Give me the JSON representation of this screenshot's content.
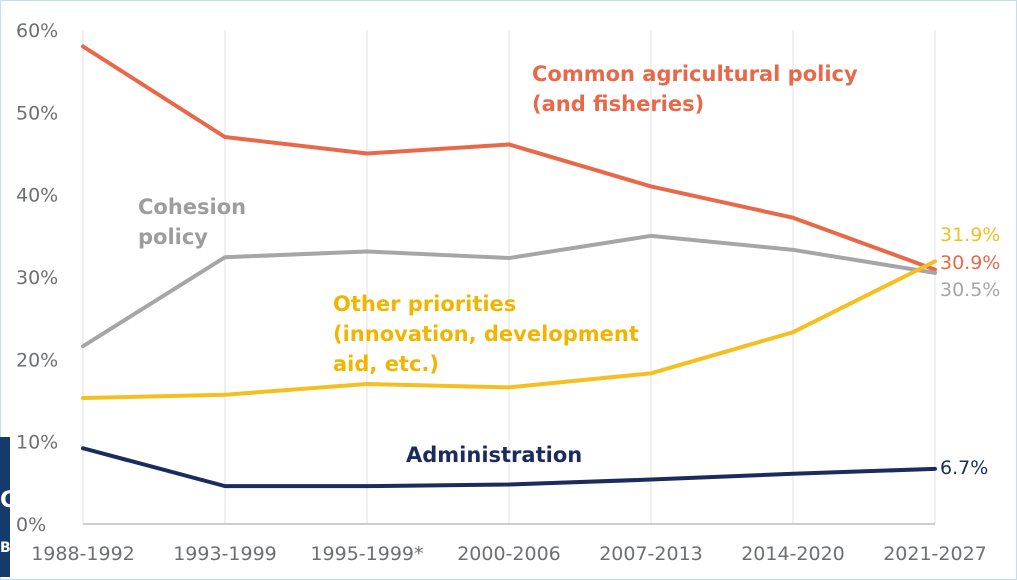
{
  "chart_data": {
    "type": "line",
    "title": "",
    "xlabel": "",
    "ylabel": "",
    "ylim": [
      0,
      60
    ],
    "y_ticks": [
      "0%",
      "10%",
      "20%",
      "30%",
      "40%",
      "50%",
      "60%"
    ],
    "grid": "vertical",
    "categories": [
      "1988-1992",
      "1993-1999",
      "1995-1999*",
      "2000-2006",
      "2007-2013",
      "2014-2020",
      "2021-2027"
    ],
    "series": [
      {
        "name": "Common agricultural policy (and fisheries)",
        "label_lines": [
          "Common agricultural policy",
          "(and fisheries)"
        ],
        "color": "#e8684a",
        "values": [
          58.0,
          47.0,
          45.0,
          46.1,
          41.0,
          37.2,
          30.9
        ],
        "end_label": "30.9%"
      },
      {
        "name": "Cohesion policy",
        "label_lines": [
          "Cohesion",
          "policy"
        ],
        "color": "#a6a6a6",
        "values": [
          21.6,
          32.4,
          33.1,
          32.3,
          35.0,
          33.3,
          30.5
        ],
        "end_label": "30.5%"
      },
      {
        "name": "Other priorities (innovation, development aid, etc.)",
        "label_lines": [
          "Other priorities",
          "(innovation, development",
          "aid, etc.)"
        ],
        "color": "#f5bf1f",
        "values": [
          15.3,
          15.7,
          17.0,
          16.6,
          18.3,
          23.3,
          31.9
        ],
        "end_label": "31.9%"
      },
      {
        "name": "Administration",
        "label_lines": [
          "Administration"
        ],
        "color": "#1b2b5e",
        "values": [
          9.2,
          4.6,
          4.6,
          4.8,
          5.4,
          6.1,
          6.7
        ],
        "end_label": "6.7%"
      }
    ]
  },
  "side_deco": {
    "letters": [
      "G",
      "B"
    ]
  }
}
